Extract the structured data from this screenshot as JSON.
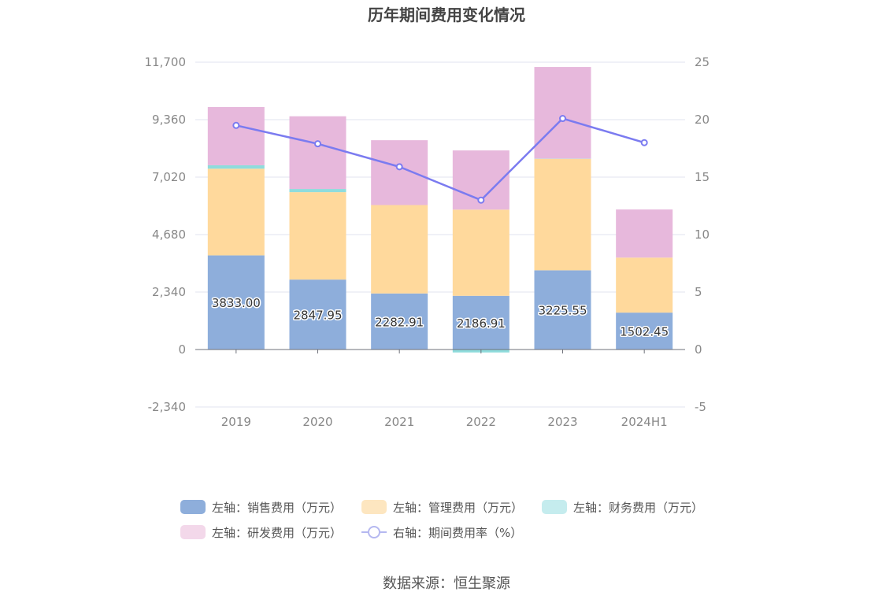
{
  "chart_data": {
    "type": "bar",
    "title": "历年期间费用变化情况",
    "categories": [
      "2019",
      "2020",
      "2021",
      "2022",
      "2023",
      "2024H1"
    ],
    "left_axis": {
      "ticks": [
        "11,700",
        "9,360",
        "7,020",
        "4,680",
        "2,340",
        "0",
        "-2,340"
      ],
      "ylim": [
        -2340,
        11700
      ]
    },
    "right_axis": {
      "ticks": [
        "25",
        "20",
        "15",
        "10",
        "5",
        "0",
        "-5"
      ],
      "ylim": [
        -5,
        25
      ]
    },
    "grid": true,
    "legend_position": "bottom",
    "series": [
      {
        "name": "左轴：销售费用（万元）",
        "type": "bar",
        "stack": "total",
        "color": "#8eaedb",
        "values": [
          3833.0,
          2847.95,
          2282.91,
          2186.91,
          3225.55,
          1502.45
        ],
        "labels": [
          "3833.00",
          "2847.95",
          "2282.91",
          "2186.91",
          "3225.55",
          "1502.45"
        ]
      },
      {
        "name": "左轴：管理费用（万元）",
        "type": "bar",
        "stack": "total",
        "color": "#ffd99c",
        "values": [
          3530,
          3560,
          3600,
          3510,
          4540,
          2240
        ]
      },
      {
        "name": "左轴：财务费用（万元）",
        "type": "bar",
        "stack": "total",
        "color": "#8fdcdc",
        "values": [
          140,
          130,
          -10,
          -120,
          10,
          -10
        ]
      },
      {
        "name": "左轴：研发费用（万元）",
        "type": "bar",
        "stack": "total",
        "color": "#e7b8dc",
        "values": [
          2370,
          2960,
          2640,
          2410,
          3730,
          1960
        ]
      },
      {
        "name": "右轴：期间费用率（%）",
        "type": "line",
        "axis": "right",
        "color": "#7b7bf0",
        "values": [
          19.5,
          17.9,
          15.9,
          13.0,
          20.1,
          18.0
        ]
      }
    ],
    "legend_swatch_colors": [
      "#8eaedb",
      "#fde6c0",
      "#c5ecee",
      "#f3d8ea",
      "#b5b8f0"
    ]
  },
  "source_text": "数据来源：恒生聚源"
}
